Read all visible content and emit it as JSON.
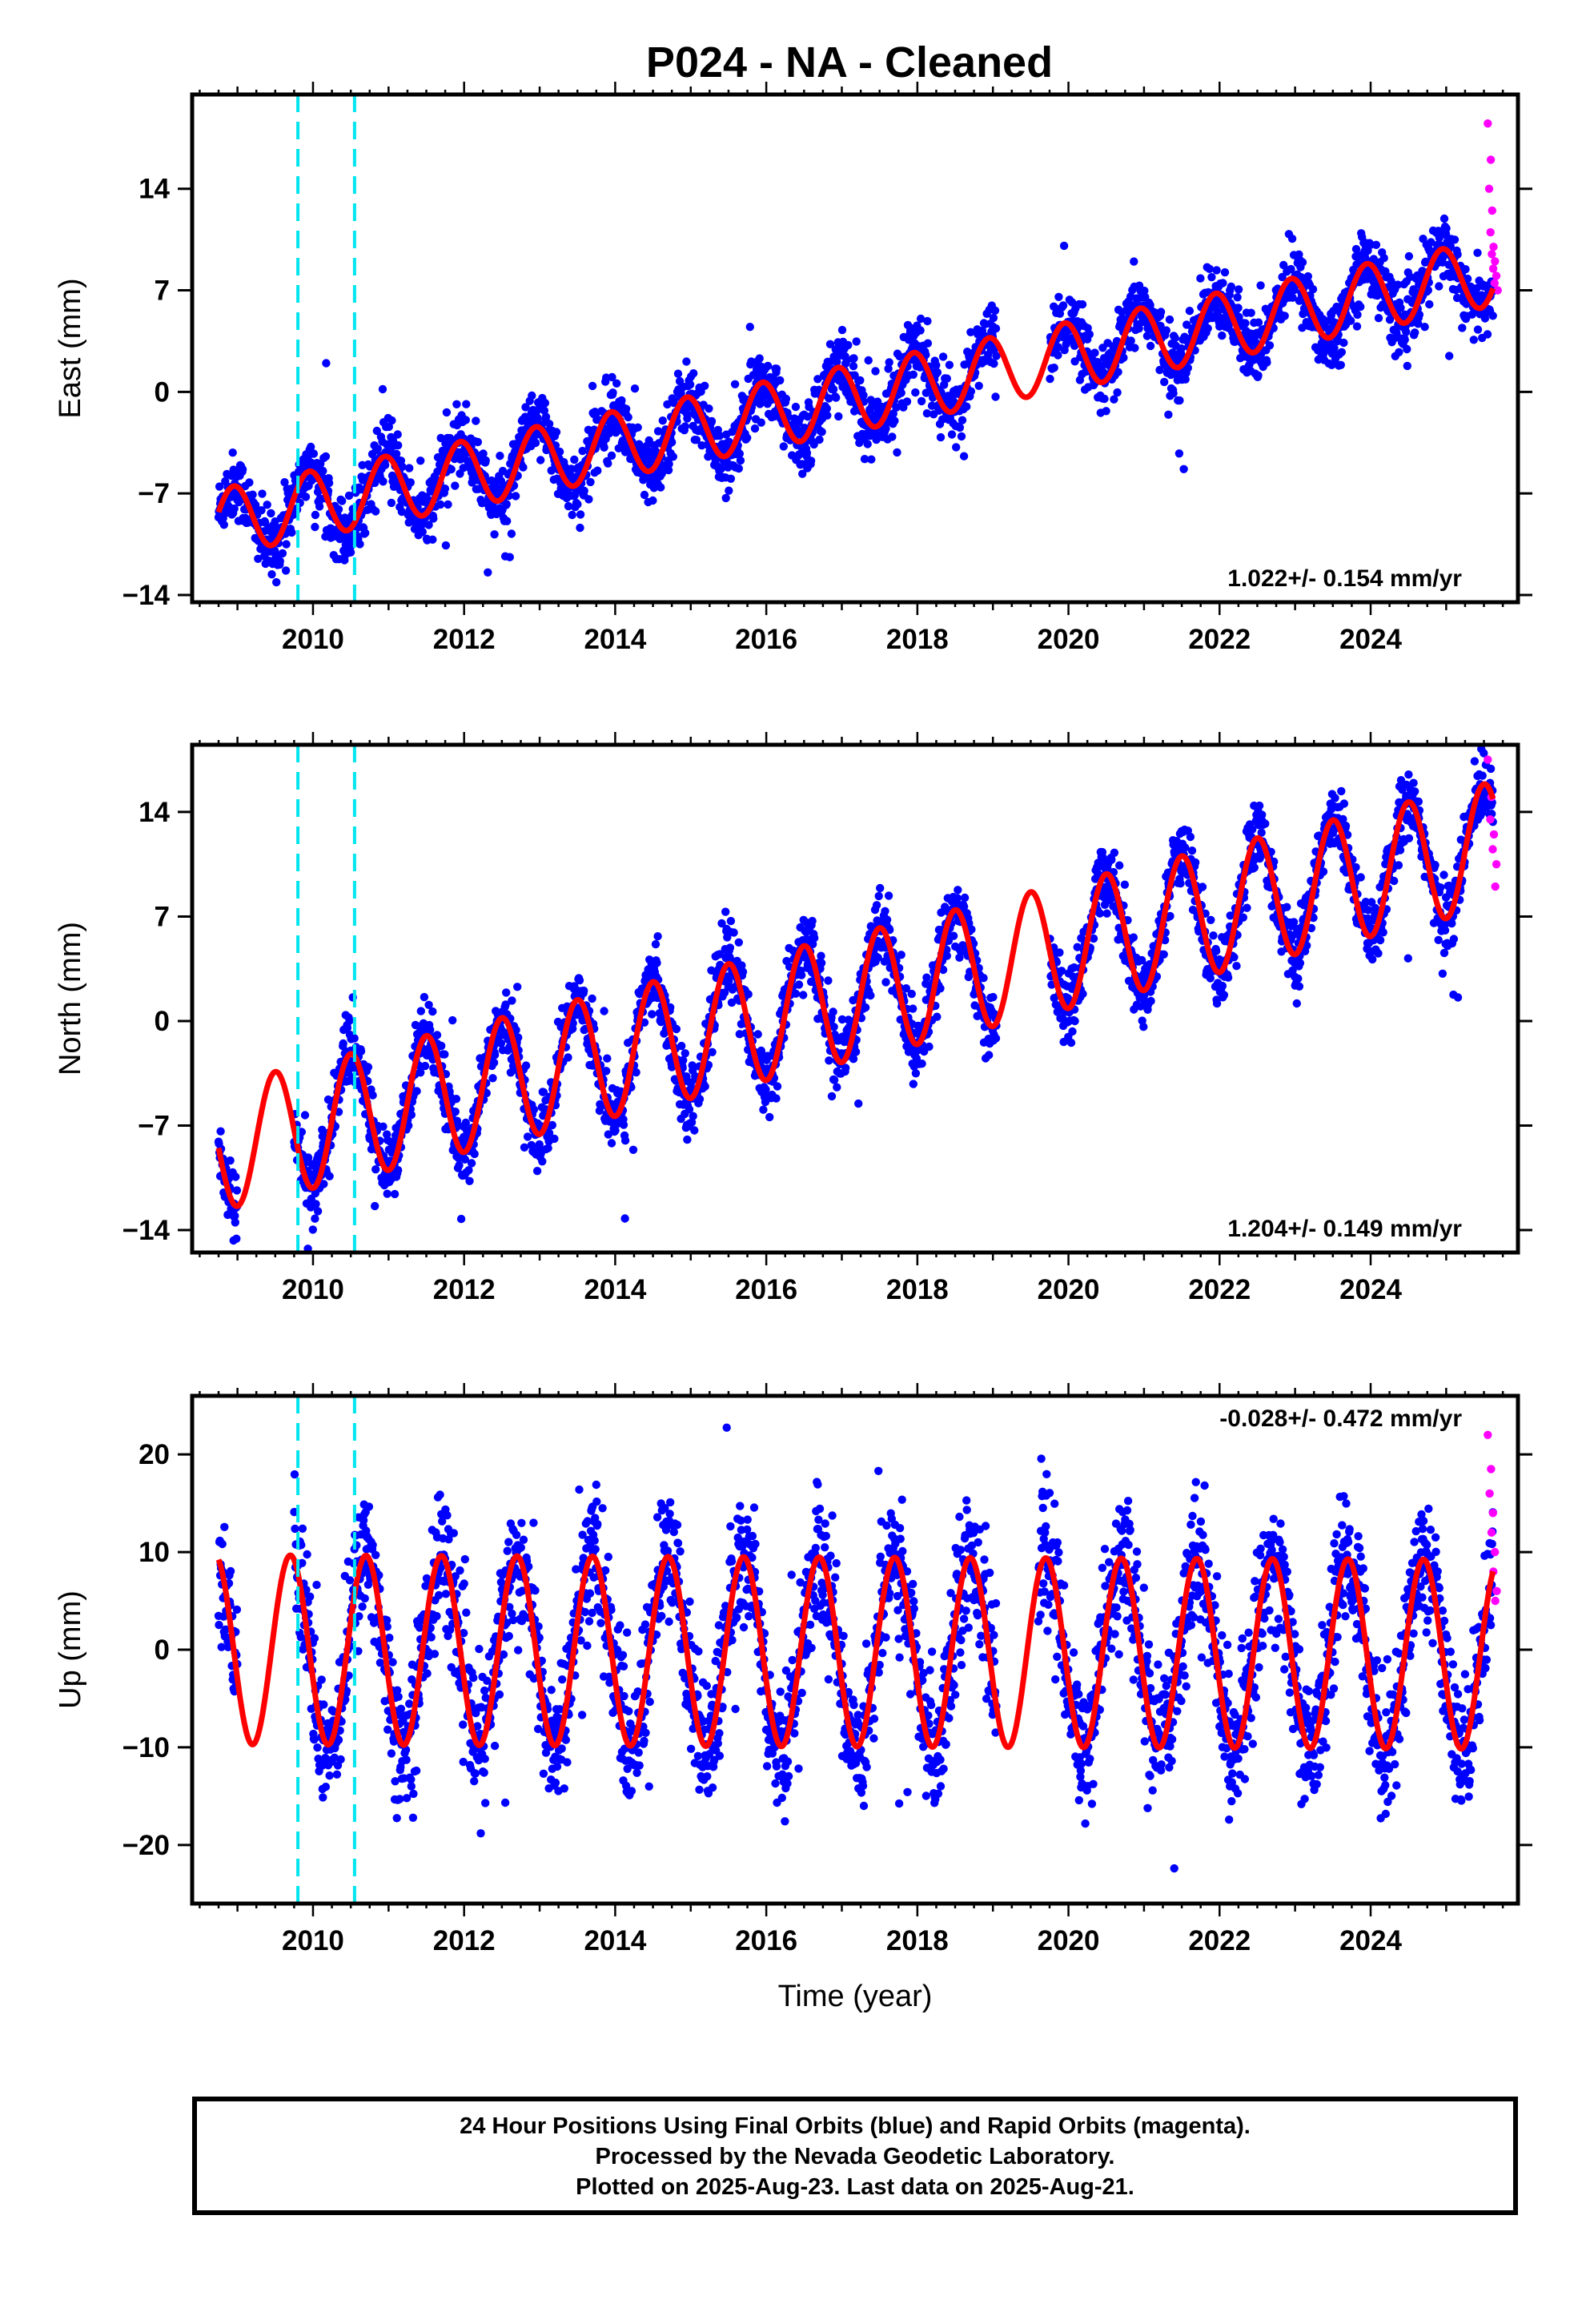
{
  "title": "P024  - NA - Cleaned",
  "footer": {
    "line1": "24 Hour Positions Using Final Orbits (blue) and Rapid Orbits (magenta).",
    "line2": "Processed by the Nevada Geodetic Laboratory.",
    "line3": "Plotted on 2025-Aug-23. Last data on 2025-Aug-21."
  },
  "colors": {
    "final_orbits": "#0000ff",
    "rapid_orbits": "#ff00ff",
    "model": "#ff0000",
    "equipment_change": "#00e5ee"
  },
  "chart_data": [
    {
      "type": "scatter",
      "component": "east",
      "ylabel": "East (mm)",
      "xlabel": "",
      "xlim": [
        2008.4,
        2025.95
      ],
      "ylim": [
        -14.5,
        20.5
      ],
      "yticks": [
        -14,
        -7,
        0,
        7,
        14
      ],
      "xticks": [
        2010,
        2012,
        2014,
        2016,
        2018,
        2020,
        2022,
        2024
      ],
      "vlines": [
        2009.8,
        2010.55
      ],
      "rate_label": "1.022+/- 0.154 mm/yr",
      "rate_position": "bottom-right",
      "model": {
        "trend_start": 2008.75,
        "trend_value": -9.0,
        "rate": 1.022,
        "annual_amplitude": 2.3,
        "peak_phase": 0.95,
        "data_start": 2008.75,
        "data_end": 2025.62
      },
      "gaps": [
        [
          2019.05,
          2019.75
        ]
      ],
      "rapid": {
        "start": 2025.55,
        "end": 2025.65,
        "values": [
          18.5,
          16.0,
          14.0,
          12.5,
          11.0,
          10.0,
          9.5,
          9.0,
          8.5,
          8.0,
          7.5,
          7.0
        ]
      }
    },
    {
      "type": "scatter",
      "component": "north",
      "ylabel": "North (mm)",
      "xlabel": "",
      "xlim": [
        2008.4,
        2025.95
      ],
      "ylim": [
        -15.5,
        18.5
      ],
      "yticks": [
        -14,
        -7,
        0,
        7,
        14
      ],
      "xticks": [
        2010,
        2012,
        2014,
        2016,
        2018,
        2020,
        2022,
        2024
      ],
      "vlines": [
        2009.8,
        2010.55
      ],
      "rate_label": "1.204+/- 0.149 mm/yr",
      "rate_position": "bottom-right",
      "model": {
        "trend_start": 2008.75,
        "trend_value": -8.5,
        "rate": 1.204,
        "annual_amplitude": 4.2,
        "peak_phase": 0.5,
        "data_start": 2008.75,
        "data_end": 2025.62
      },
      "gaps": [
        [
          2009.0,
          2009.75
        ],
        [
          2019.05,
          2019.75
        ]
      ],
      "rapid": {
        "start": 2025.55,
        "end": 2025.65,
        "values": [
          17.5,
          15.0,
          13.5,
          12.5,
          11.5,
          10.5,
          9.0
        ]
      }
    },
    {
      "type": "scatter",
      "component": "up",
      "ylabel": "Up (mm)",
      "xlabel": "Time (year)",
      "xlim": [
        2008.4,
        2025.95
      ],
      "ylim": [
        -26,
        26
      ],
      "yticks": [
        -20,
        -10,
        0,
        10,
        20
      ],
      "xticks": [
        2010,
        2012,
        2014,
        2016,
        2018,
        2020,
        2022,
        2024
      ],
      "vlines": [
        2009.8,
        2010.55
      ],
      "rate_label": "-0.028+/- 0.472 mm/yr",
      "rate_position": "top-right",
      "model": {
        "trend_start": 2008.75,
        "trend_value": 0.0,
        "rate": -0.028,
        "annual_amplitude": 9.7,
        "peak_phase": 0.7,
        "data_start": 2008.75,
        "data_end": 2025.62
      },
      "gaps": [
        [
          2009.0,
          2009.75
        ],
        [
          2019.05,
          2019.6
        ]
      ],
      "rapid": {
        "start": 2025.55,
        "end": 2025.65,
        "values": [
          22.0,
          18.5,
          16.0,
          14.0,
          12.0,
          10.0,
          8.0,
          6.0,
          5.0
        ]
      }
    }
  ]
}
